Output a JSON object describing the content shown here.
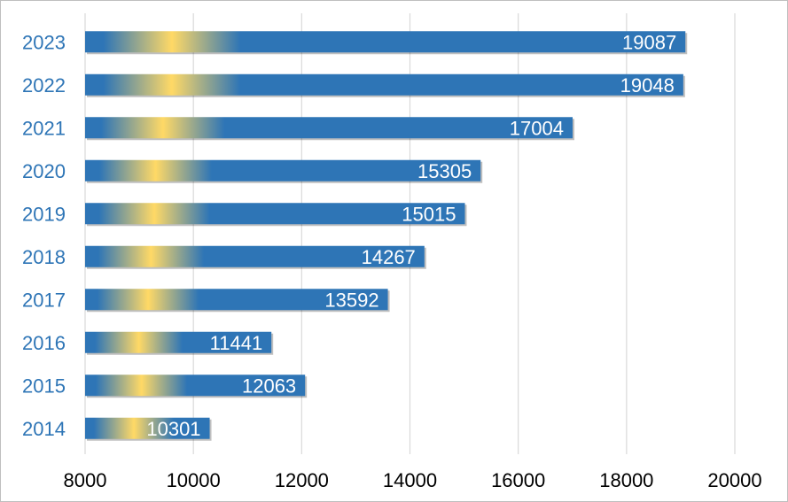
{
  "chart_data": {
    "type": "bar",
    "orientation": "horizontal",
    "categories": [
      "2023",
      "2022",
      "2021",
      "2020",
      "2019",
      "2018",
      "2017",
      "2016",
      "2015",
      "2014"
    ],
    "values": [
      19087,
      19048,
      17004,
      15305,
      15015,
      14267,
      13592,
      11441,
      12063,
      10301
    ],
    "xlim": [
      8000,
      20000
    ],
    "xticks": [
      8000,
      10000,
      12000,
      14000,
      16000,
      18000,
      20000
    ],
    "grid": true,
    "legend": "none",
    "colors": {
      "bar": "#2e75b6",
      "highlight": "#ffd966",
      "category_label": "#2e75b6",
      "grid": "#d9d9d9"
    }
  }
}
